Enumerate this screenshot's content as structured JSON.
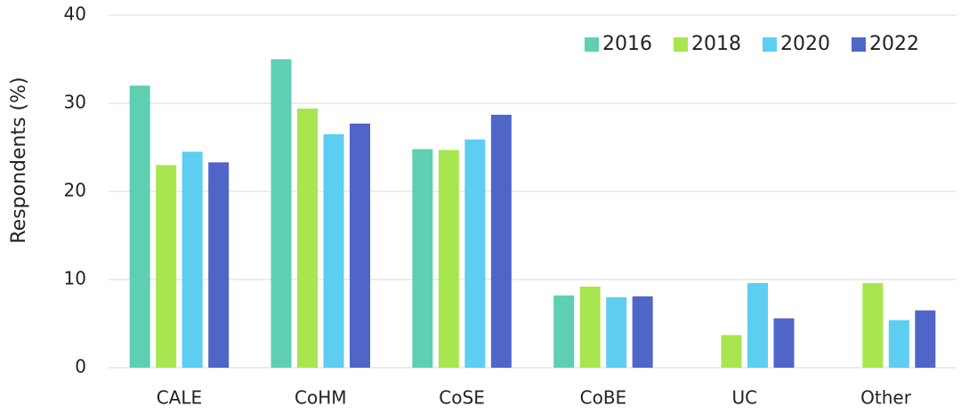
{
  "chart_data": {
    "type": "bar",
    "ylabel": "Respondents (%)",
    "categories": [
      "CALE",
      "CoHM",
      "CoSE",
      "CoBE",
      "UC",
      "Other"
    ],
    "series": [
      {
        "name": "2016",
        "color": "#5ecfb1",
        "values": [
          32,
          35,
          24.8,
          8.2,
          null,
          null
        ]
      },
      {
        "name": "2018",
        "color": "#a8e64f",
        "values": [
          23,
          29.4,
          24.7,
          9.2,
          3.7,
          9.6
        ]
      },
      {
        "name": "2020",
        "color": "#5ecdf2",
        "values": [
          24.5,
          26.5,
          25.9,
          8.0,
          9.6,
          5.4
        ]
      },
      {
        "name": "2022",
        "color": "#4f66c8",
        "values": [
          23.3,
          27.7,
          28.7,
          8.1,
          5.6,
          6.5
        ]
      }
    ],
    "ylim": [
      0,
      40
    ],
    "yticks": [
      0,
      10,
      20,
      30,
      40
    ],
    "grid": true,
    "legend": "upper right"
  }
}
